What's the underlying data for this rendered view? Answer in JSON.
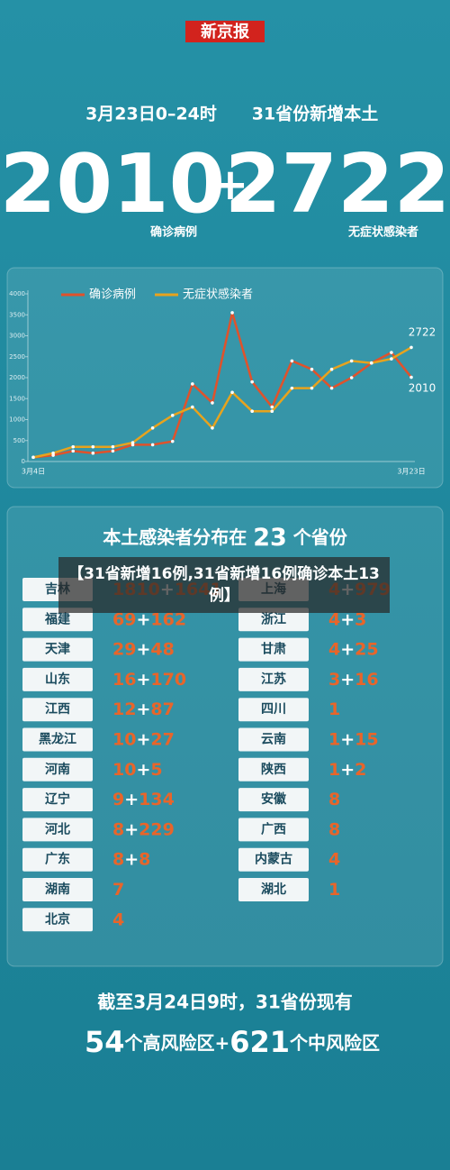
{
  "logo": "新京报",
  "headline": {
    "date": "3月23日0–24时",
    "subject": "31省份新增本土",
    "confirmed": "2010",
    "plus": "+",
    "asymptomatic": "2722",
    "confirmed_label": "确诊病例",
    "asymptomatic_label": "无症状感染者"
  },
  "chart_data": {
    "type": "line",
    "categories": [
      "3月4日",
      null,
      null,
      null,
      null,
      null,
      null,
      null,
      null,
      null,
      null,
      null,
      null,
      null,
      null,
      null,
      null,
      null,
      null,
      "3月23日"
    ],
    "series": [
      {
        "name": "确诊病例",
        "color": "#e0522b",
        "values": [
          100,
          150,
          250,
          200,
          250,
          400,
          400,
          480,
          1850,
          1400,
          3550,
          1900,
          1300,
          2400,
          2200,
          1750,
          2000,
          2350,
          2600,
          2010
        ]
      },
      {
        "name": "无症状感染者",
        "color": "#e8a31d",
        "values": [
          100,
          200,
          350,
          350,
          350,
          450,
          800,
          1100,
          1300,
          800,
          1650,
          1200,
          1200,
          1750,
          1750,
          2200,
          2400,
          2350,
          2450,
          2722
        ]
      }
    ],
    "ylim": [
      0,
      4000
    ],
    "yticks": [
      0,
      500,
      1000,
      1500,
      2000,
      2500,
      3000,
      3500,
      4000
    ],
    "grid": false
  },
  "distribution": {
    "title_parts": [
      "本土感染者分布在 ",
      "23",
      " 个省份"
    ],
    "left": [
      [
        "吉林",
        "1810+1641"
      ],
      [
        "福建",
        "69+162"
      ],
      [
        "天津",
        "29+48"
      ],
      [
        "山东",
        "16+170"
      ],
      [
        "江西",
        "12+87"
      ],
      [
        "黑龙江",
        "10+27"
      ],
      [
        "河南",
        "10+5"
      ],
      [
        "辽宁",
        "9+134"
      ],
      [
        "河北",
        "8+229"
      ],
      [
        "广东",
        "8+8"
      ],
      [
        "湖南",
        "7"
      ],
      [
        "北京",
        "4"
      ]
    ],
    "right": [
      [
        "上海",
        "4+979"
      ],
      [
        "浙江",
        "4+3"
      ],
      [
        "甘肃",
        "4+25"
      ],
      [
        "江苏",
        "3+16"
      ],
      [
        "四川",
        "1"
      ],
      [
        "云南",
        "1+15"
      ],
      [
        "陕西",
        "1+2"
      ],
      [
        "安徽",
        "8"
      ],
      [
        "广西",
        "8"
      ],
      [
        "内蒙古",
        "4"
      ],
      [
        "湖北",
        "1"
      ]
    ]
  },
  "overlay_caption": "【31省新增16例,31省新增16例确诊本土13例】",
  "footer": {
    "line1": "截至3月24日9时，31省份现有",
    "line2": [
      "54",
      "个高风险区+",
      "621",
      "个中风险区"
    ]
  }
}
